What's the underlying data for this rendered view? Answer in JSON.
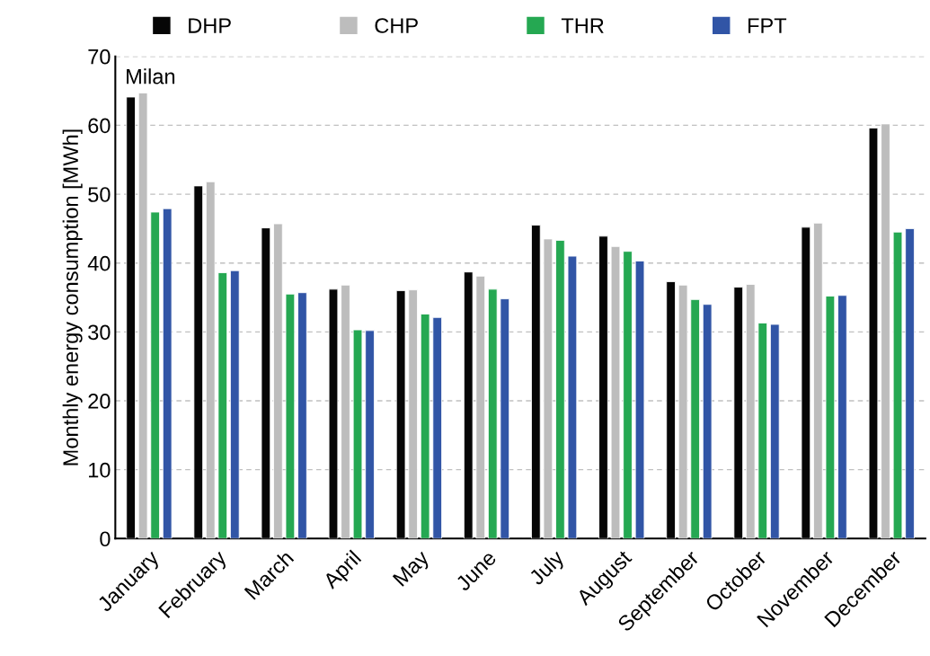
{
  "chart_data": {
    "type": "bar",
    "ylabel": "Monthly energy consumption [MWh]",
    "annotations": [
      "Milan"
    ],
    "categories": [
      "January",
      "February",
      "March",
      "April",
      "May",
      "June",
      "July",
      "August",
      "September",
      "October",
      "November",
      "December"
    ],
    "series": [
      {
        "name": "DHP",
        "color": "#060606",
        "values": [
          64.1,
          51.2,
          45.1,
          36.2,
          36.0,
          38.7,
          45.5,
          43.9,
          37.3,
          36.5,
          45.2,
          59.6
        ]
      },
      {
        "name": "CHP",
        "color": "#bdbdbd",
        "values": [
          64.7,
          51.8,
          45.7,
          36.8,
          36.1,
          38.1,
          43.5,
          42.4,
          36.8,
          36.9,
          45.8,
          60.2
        ]
      },
      {
        "name": "THR",
        "color": "#25a852",
        "values": [
          47.4,
          38.6,
          35.5,
          30.3,
          32.6,
          36.2,
          43.3,
          41.7,
          34.7,
          31.3,
          35.2,
          44.5
        ]
      },
      {
        "name": "FPT",
        "color": "#3155a6",
        "values": [
          47.9,
          38.9,
          35.7,
          30.2,
          32.1,
          34.8,
          41.0,
          40.3,
          34.0,
          31.1,
          35.3,
          45.0
        ]
      }
    ],
    "ylim": [
      0,
      70
    ],
    "yticks": [
      0,
      10,
      20,
      30,
      40,
      50,
      60,
      70
    ],
    "grid": "y",
    "legend": "top",
    "marker": "square"
  }
}
